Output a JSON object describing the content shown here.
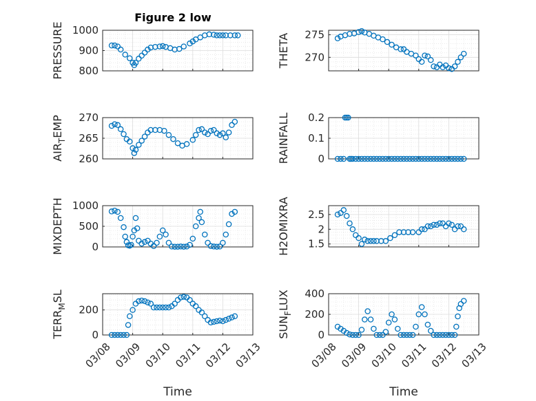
{
  "figure": {
    "title": "Figure 2 low"
  },
  "colors": {
    "marker": "#0072BD",
    "grid": "#DCDCDC",
    "axis": "#262626"
  },
  "chart_data": [
    {
      "type": "scatter",
      "title": "Figure 2 low",
      "ylabel": "PRESSURE",
      "ylabel_sub": "",
      "xlabel": "",
      "ylim": [
        800,
        1000
      ],
      "yticks": [
        "800",
        "900",
        "1000"
      ],
      "ytick_values": [
        800,
        900,
        1000
      ],
      "xlim": [
        0,
        5
      ],
      "xticks": [
        "03/08",
        "03/09",
        "03/10",
        "03/11",
        "03/12",
        "03/13"
      ],
      "grid": true,
      "marker": "circle",
      "series": [
        {
          "x": [
            0.3,
            0.4,
            0.5,
            0.6,
            0.75,
            0.9,
            1.0,
            1.05,
            1.1,
            1.2,
            1.3,
            1.4,
            1.5,
            1.6,
            1.75,
            1.9,
            2.0,
            2.1,
            2.25,
            2.4,
            2.55,
            2.7,
            2.9,
            3.0,
            3.1,
            3.25,
            3.4,
            3.55,
            3.7,
            3.8,
            3.9,
            4.0,
            4.1,
            4.25,
            4.4,
            4.5
          ],
          "y": [
            925,
            925,
            920,
            905,
            880,
            862,
            840,
            828,
            840,
            860,
            875,
            890,
            905,
            915,
            918,
            920,
            922,
            918,
            912,
            905,
            908,
            920,
            935,
            945,
            955,
            965,
            975,
            980,
            978,
            975,
            975,
            975,
            975,
            975,
            975,
            975
          ]
        }
      ]
    },
    {
      "type": "scatter",
      "title": "",
      "ylabel": "THETA",
      "ylabel_sub": "",
      "xlabel": "",
      "ylim": [
        267,
        276
      ],
      "yticks": [
        "270",
        "275"
      ],
      "ytick_values": [
        270,
        275
      ],
      "xlim": [
        0,
        5
      ],
      "xticks": [
        "03/08",
        "03/09",
        "03/10",
        "03/11",
        "03/12",
        "03/13"
      ],
      "grid": true,
      "marker": "circle",
      "series": [
        {
          "x": [
            0.3,
            0.4,
            0.55,
            0.7,
            0.85,
            1.0,
            1.1,
            1.2,
            1.35,
            1.5,
            1.65,
            1.8,
            1.95,
            2.1,
            2.25,
            2.4,
            2.5,
            2.6,
            2.75,
            2.9,
            3.0,
            3.1,
            3.2,
            3.3,
            3.4,
            3.5,
            3.6,
            3.7,
            3.8,
            3.9,
            4.0,
            4.1,
            4.2,
            4.3,
            4.4,
            4.5
          ],
          "y": [
            274.2,
            274.6,
            274.9,
            275.2,
            275.3,
            275.6,
            275.8,
            275.5,
            275.2,
            274.8,
            274.4,
            274.0,
            273.4,
            272.8,
            272.2,
            271.8,
            271.8,
            271.2,
            270.8,
            270.4,
            269.6,
            269.0,
            270.4,
            270.2,
            269.4,
            268.0,
            267.8,
            268.4,
            267.8,
            268.2,
            267.6,
            267.4,
            268.0,
            269.0,
            270.0,
            270.8
          ]
        }
      ]
    },
    {
      "type": "scatter",
      "title": "",
      "ylabel": "AIR",
      "ylabel_sub": "T",
      "ylabel_rest": "EMP",
      "xlabel": "",
      "ylim": [
        260,
        270
      ],
      "yticks": [
        "260",
        "265",
        "270"
      ],
      "ytick_values": [
        260,
        265,
        270
      ],
      "xlim": [
        0,
        5
      ],
      "xticks": [
        "03/08",
        "03/09",
        "03/10",
        "03/11",
        "03/12",
        "03/13"
      ],
      "grid": true,
      "marker": "circle",
      "series": [
        {
          "x": [
            0.3,
            0.4,
            0.5,
            0.6,
            0.7,
            0.8,
            0.9,
            1.0,
            1.05,
            1.1,
            1.2,
            1.3,
            1.4,
            1.5,
            1.6,
            1.75,
            1.9,
            2.05,
            2.2,
            2.35,
            2.5,
            2.65,
            2.8,
            3.0,
            3.1,
            3.2,
            3.3,
            3.4,
            3.5,
            3.6,
            3.7,
            3.8,
            3.9,
            4.0,
            4.1,
            4.2,
            4.3,
            4.4
          ],
          "y": [
            268.0,
            268.4,
            268.2,
            267.2,
            266.0,
            264.8,
            264.2,
            262.6,
            261.4,
            262.2,
            263.4,
            264.4,
            265.4,
            266.4,
            267.0,
            267.0,
            267.0,
            266.8,
            265.8,
            264.8,
            263.8,
            263.2,
            263.6,
            264.6,
            265.8,
            267.0,
            267.2,
            266.4,
            266.0,
            266.8,
            267.0,
            266.2,
            265.8,
            266.2,
            265.2,
            266.4,
            268.2,
            269.0
          ]
        }
      ]
    },
    {
      "type": "scatter",
      "title": "",
      "ylabel": "RAINFALL",
      "ylabel_sub": "",
      "xlabel": "",
      "ylim": [
        0,
        0.2
      ],
      "yticks": [
        "0",
        "0.1",
        "0.2"
      ],
      "ytick_values": [
        0,
        0.1,
        0.2
      ],
      "xlim": [
        0,
        5
      ],
      "xticks": [
        "03/08",
        "03/09",
        "03/10",
        "03/11",
        "03/12",
        "03/13"
      ],
      "grid": true,
      "marker": "circle",
      "series": [
        {
          "x": [
            0.3,
            0.4,
            0.5,
            0.55,
            0.6,
            0.65,
            0.7,
            0.75,
            0.8,
            0.9,
            1.0,
            1.1,
            1.2,
            1.3,
            1.4,
            1.5,
            1.6,
            1.7,
            1.8,
            1.9,
            2.0,
            2.1,
            2.2,
            2.3,
            2.4,
            2.5,
            2.6,
            2.7,
            2.8,
            2.9,
            3.0,
            3.1,
            3.2,
            3.3,
            3.4,
            3.5,
            3.6,
            3.7,
            3.8,
            3.9,
            4.0,
            4.1,
            4.2,
            4.3,
            4.4,
            4.5
          ],
          "y": [
            0,
            0,
            0,
            0.2,
            0.2,
            0.2,
            0,
            0,
            0,
            0,
            0,
            0,
            0,
            0,
            0,
            0,
            0,
            0,
            0,
            0,
            0,
            0,
            0,
            0,
            0,
            0,
            0,
            0,
            0,
            0,
            0,
            0,
            0,
            0,
            0,
            0,
            0,
            0,
            0,
            0,
            0,
            0,
            0,
            0,
            0,
            0
          ]
        }
      ]
    },
    {
      "type": "scatter",
      "title": "",
      "ylabel": "MIXDEPTH",
      "ylabel_sub": "",
      "xlabel": "",
      "ylim": [
        0,
        1000
      ],
      "yticks": [
        "0",
        "500",
        "1000"
      ],
      "ytick_values": [
        0,
        500,
        1000
      ],
      "xlim": [
        0,
        5
      ],
      "xticks": [
        "03/08",
        "03/09",
        "03/10",
        "03/11",
        "03/12",
        "03/13"
      ],
      "grid": true,
      "marker": "circle",
      "series": [
        {
          "x": [
            0.3,
            0.4,
            0.5,
            0.6,
            0.7,
            0.75,
            0.8,
            0.85,
            0.9,
            0.95,
            1.0,
            1.05,
            1.1,
            1.15,
            1.2,
            1.3,
            1.4,
            1.5,
            1.6,
            1.7,
            1.8,
            1.9,
            2.0,
            2.1,
            2.2,
            2.3,
            2.4,
            2.5,
            2.6,
            2.7,
            2.8,
            2.9,
            3.0,
            3.1,
            3.2,
            3.25,
            3.3,
            3.4,
            3.5,
            3.6,
            3.7,
            3.8,
            3.9,
            4.0,
            4.1,
            4.2,
            4.3,
            4.4
          ],
          "y": [
            860,
            880,
            850,
            700,
            480,
            250,
            120,
            40,
            30,
            50,
            250,
            400,
            700,
            450,
            150,
            80,
            120,
            150,
            80,
            20,
            100,
            250,
            400,
            300,
            100,
            10,
            5,
            5,
            10,
            5,
            10,
            50,
            200,
            500,
            700,
            850,
            600,
            300,
            100,
            20,
            10,
            5,
            10,
            100,
            300,
            550,
            800,
            850
          ]
        }
      ]
    },
    {
      "type": "scatter",
      "title": "",
      "ylabel": "H2OMIXRA",
      "ylabel_sub": "",
      "xlabel": "",
      "ylim": [
        1.4,
        2.8
      ],
      "yticks": [
        "1.5",
        "2",
        "2.5"
      ],
      "ytick_values": [
        1.5,
        2,
        2.5
      ],
      "xlim": [
        0,
        5
      ],
      "xticks": [
        "03/08",
        "03/09",
        "03/10",
        "03/11",
        "03/12",
        "03/13"
      ],
      "grid": true,
      "marker": "circle",
      "series": [
        {
          "x": [
            0.3,
            0.4,
            0.5,
            0.6,
            0.7,
            0.8,
            0.9,
            1.0,
            1.1,
            1.2,
            1.3,
            1.4,
            1.5,
            1.6,
            1.75,
            1.9,
            2.05,
            2.2,
            2.35,
            2.5,
            2.65,
            2.8,
            3.0,
            3.1,
            3.2,
            3.3,
            3.4,
            3.5,
            3.6,
            3.7,
            3.8,
            3.9,
            4.0,
            4.1,
            4.2,
            4.3,
            4.4,
            4.5
          ],
          "y": [
            2.5,
            2.55,
            2.65,
            2.45,
            2.2,
            2.0,
            1.8,
            1.7,
            1.5,
            1.65,
            1.6,
            1.6,
            1.6,
            1.6,
            1.6,
            1.6,
            1.7,
            1.8,
            1.9,
            1.9,
            1.9,
            1.9,
            1.9,
            2.0,
            2.0,
            2.1,
            2.1,
            2.15,
            2.15,
            2.2,
            2.2,
            2.1,
            2.2,
            2.15,
            2.0,
            2.1,
            2.1,
            2.0
          ]
        }
      ]
    },
    {
      "type": "scatter",
      "title": "",
      "ylabel": "TERR",
      "ylabel_sub": "M",
      "ylabel_rest": "SL",
      "xlabel": "Time",
      "ylim": [
        0,
        330
      ],
      "yticks": [
        "0",
        "200"
      ],
      "ytick_values": [
        0,
        200
      ],
      "xlim": [
        0,
        5
      ],
      "xticks": [
        "03/08",
        "03/09",
        "03/10",
        "03/11",
        "03/12",
        "03/13"
      ],
      "grid": true,
      "marker": "circle",
      "series": [
        {
          "x": [
            0.3,
            0.4,
            0.5,
            0.6,
            0.7,
            0.8,
            0.85,
            0.9,
            1.0,
            1.1,
            1.2,
            1.3,
            1.4,
            1.5,
            1.6,
            1.7,
            1.8,
            1.9,
            2.0,
            2.1,
            2.2,
            2.3,
            2.4,
            2.5,
            2.6,
            2.7,
            2.8,
            2.9,
            3.0,
            3.1,
            3.2,
            3.3,
            3.4,
            3.5,
            3.6,
            3.7,
            3.8,
            3.9,
            4.0,
            4.1,
            4.2,
            4.3,
            4.4
          ],
          "y": [
            0,
            0,
            0,
            0,
            0,
            0,
            80,
            150,
            200,
            250,
            270,
            275,
            270,
            260,
            250,
            220,
            220,
            220,
            220,
            220,
            220,
            230,
            250,
            280,
            300,
            305,
            300,
            280,
            250,
            230,
            200,
            180,
            150,
            120,
            100,
            105,
            110,
            115,
            110,
            120,
            130,
            140,
            150
          ]
        }
      ]
    },
    {
      "type": "scatter",
      "title": "",
      "ylabel": "SUN",
      "ylabel_sub": "F",
      "ylabel_rest": "LUX",
      "xlabel": "Time",
      "ylim": [
        0,
        400
      ],
      "yticks": [
        "0",
        "200",
        "400"
      ],
      "ytick_values": [
        0,
        200,
        400
      ],
      "xlim": [
        0,
        5
      ],
      "xticks": [
        "03/08",
        "03/09",
        "03/10",
        "03/11",
        "03/12",
        "03/13"
      ],
      "grid": true,
      "marker": "circle",
      "series": [
        {
          "x": [
            0.3,
            0.4,
            0.5,
            0.6,
            0.7,
            0.8,
            0.9,
            1.0,
            1.1,
            1.2,
            1.3,
            1.4,
            1.5,
            1.6,
            1.7,
            1.8,
            1.9,
            2.0,
            2.1,
            2.2,
            2.3,
            2.4,
            2.5,
            2.6,
            2.7,
            2.8,
            2.9,
            3.0,
            3.1,
            3.2,
            3.3,
            3.4,
            3.5,
            3.6,
            3.7,
            3.8,
            3.9,
            4.0,
            4.1,
            4.2,
            4.25,
            4.3,
            4.35,
            4.4,
            4.5
          ],
          "y": [
            80,
            60,
            40,
            20,
            5,
            0,
            0,
            0,
            50,
            150,
            230,
            150,
            60,
            0,
            0,
            0,
            30,
            120,
            200,
            150,
            60,
            0,
            0,
            0,
            0,
            0,
            80,
            200,
            270,
            200,
            100,
            40,
            0,
            0,
            0,
            0,
            0,
            0,
            0,
            0,
            80,
            180,
            260,
            300,
            330
          ]
        }
      ]
    }
  ]
}
